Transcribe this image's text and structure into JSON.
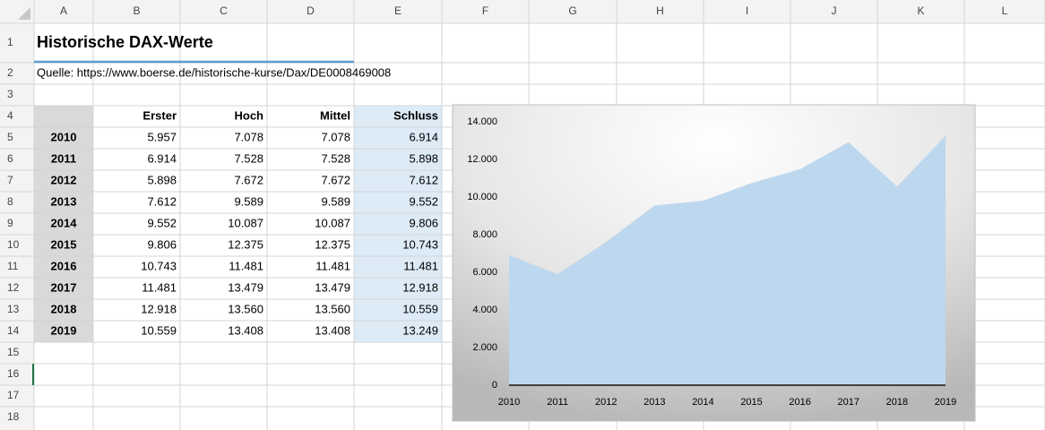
{
  "columns": [
    "A",
    "B",
    "C",
    "D",
    "E",
    "F",
    "G",
    "H",
    "I",
    "J",
    "K",
    "L"
  ],
  "rows": [
    "1",
    "2",
    "3",
    "4",
    "5",
    "6",
    "7",
    "8",
    "9",
    "10",
    "11",
    "12",
    "13",
    "14",
    "15",
    "16",
    "17",
    "18"
  ],
  "title": "Historische DAX-Werte",
  "source": "Quelle: https://www.boerse.de/historische-kurse/Dax/DE0008469008",
  "table": {
    "header": [
      "Erster",
      "Hoch",
      "Mittel",
      "Schluss"
    ],
    "rows": [
      [
        "2010",
        "5.957",
        "7.078",
        "7.078",
        "6.914"
      ],
      [
        "2011",
        "6.914",
        "7.528",
        "7.528",
        "5.898"
      ],
      [
        "2012",
        "5.898",
        "7.672",
        "7.672",
        "7.612"
      ],
      [
        "2013",
        "7.612",
        "9.589",
        "9.589",
        "9.552"
      ],
      [
        "2014",
        "9.552",
        "10.087",
        "10.087",
        "9.806"
      ],
      [
        "2015",
        "9.806",
        "12.375",
        "12.375",
        "10.743"
      ],
      [
        "2016",
        "10.743",
        "11.481",
        "11.481",
        "11.481"
      ],
      [
        "2017",
        "11.481",
        "13.479",
        "13.479",
        "12.918"
      ],
      [
        "2018",
        "12.918",
        "13.560",
        "13.560",
        "10.559"
      ],
      [
        "2019",
        "10.559",
        "13.408",
        "13.408",
        "13.249"
      ]
    ]
  },
  "chart_data": {
    "type": "area",
    "categories": [
      "2010",
      "2011",
      "2012",
      "2013",
      "2014",
      "2015",
      "2016",
      "2017",
      "2018",
      "2019"
    ],
    "values": [
      6914,
      5898,
      7612,
      9552,
      9806,
      10743,
      11481,
      12918,
      10559,
      13249
    ],
    "color": "#bdd7ee",
    "ylim": [
      0,
      14000
    ],
    "yticks": [
      0,
      {
        "value": 2000,
        "label": "2.000"
      },
      {
        "value": 4000,
        "label": "4.000"
      },
      {
        "value": 6000,
        "label": "6.000"
      },
      {
        "value": 8000,
        "label": "8.000"
      },
      {
        "value": 10000,
        "label": "10.000"
      },
      {
        "value": 12000,
        "label": "12.000"
      },
      {
        "value": 14000,
        "label": "14.000"
      }
    ]
  }
}
